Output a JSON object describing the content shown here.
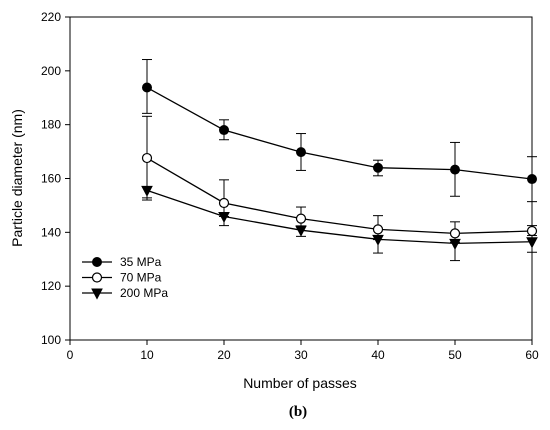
{
  "chart_data": {
    "type": "line",
    "xlabel": "Number of passes",
    "ylabel": "Particle diameter (nm)",
    "xlim": [
      0,
      60
    ],
    "ylim": [
      100,
      220
    ],
    "xticks": [
      0,
      10,
      20,
      30,
      40,
      50,
      60
    ],
    "yticks": [
      100,
      120,
      140,
      160,
      180,
      200,
      220
    ],
    "x": [
      10,
      20,
      30,
      40,
      50,
      60
    ],
    "grid": false,
    "legend_position": "bottom-left",
    "series": [
      {
        "name": "35 MPa",
        "marker": "filled-circle",
        "values": [
          193.8,
          178.0,
          169.8,
          164.0,
          163.3,
          159.8
        ],
        "err_low": [
          9.6,
          3.6,
          6.8,
          3.0,
          9.9,
          8.4
        ],
        "err_high": [
          10.4,
          3.8,
          6.9,
          2.8,
          10.1,
          8.3
        ]
      },
      {
        "name": "70 MPa",
        "marker": "open-circle",
        "values": [
          167.6,
          150.9,
          145.1,
          141.1,
          139.6,
          140.5
        ],
        "err_low": [
          15.6,
          5.0,
          2.7,
          3.8,
          3.3,
          1.7
        ],
        "err_high": [
          15.5,
          8.6,
          4.3,
          5.1,
          4.3,
          2.0
        ],
        "cap_shown": [
          true,
          true,
          true,
          true,
          true,
          true
        ]
      },
      {
        "name": "200 MPa",
        "marker": "filled-triangle-down",
        "values": [
          155.6,
          145.9,
          140.8,
          137.4,
          135.9,
          136.5
        ],
        "err_low": [
          2.8,
          3.4,
          2.3,
          5.1,
          6.4,
          3.9
        ],
        "err_high": [
          0.0,
          0.0,
          0.0,
          0.0,
          0.0,
          0.0
        ]
      }
    ],
    "caption": "(b)"
  }
}
